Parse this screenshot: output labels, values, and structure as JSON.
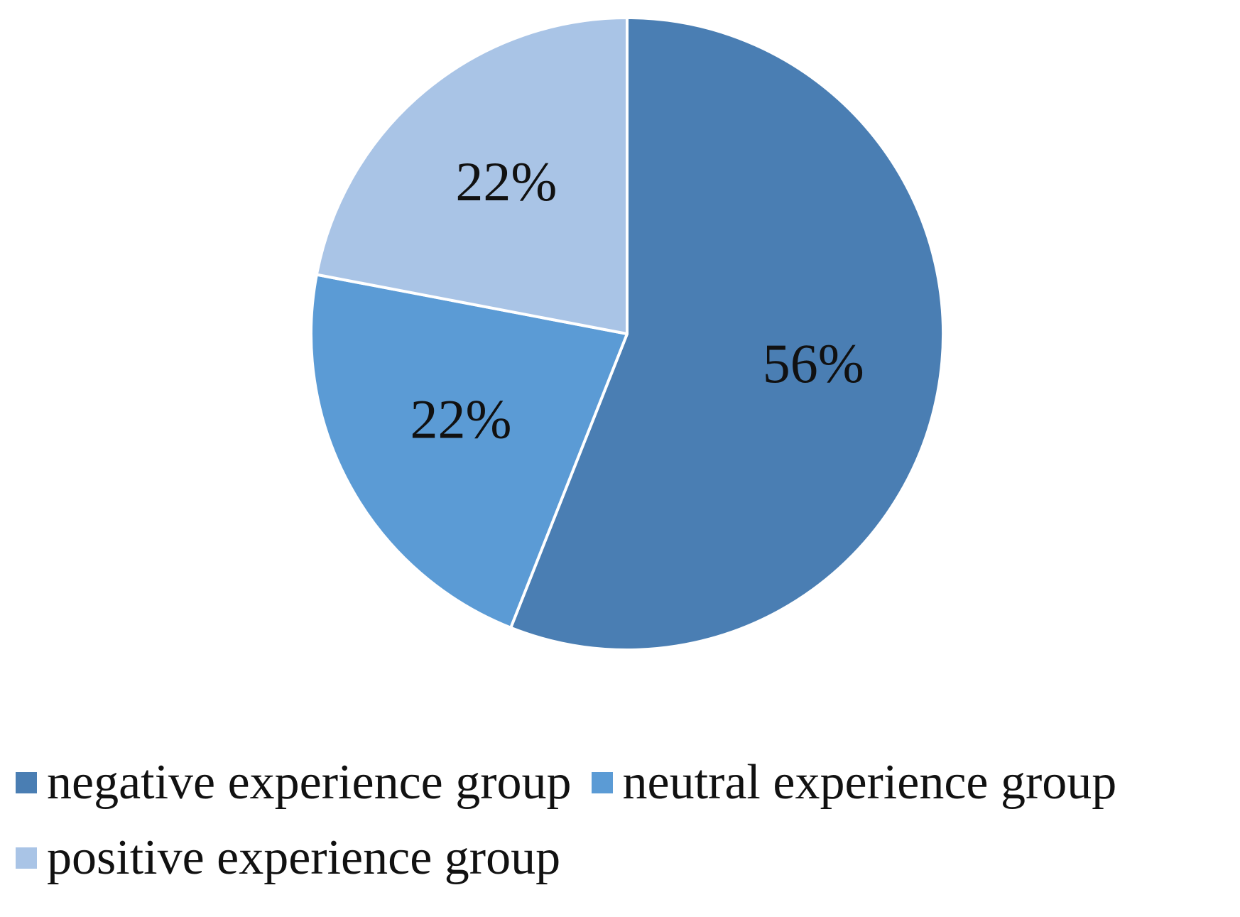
{
  "chart_data": {
    "type": "pie",
    "title": "",
    "slices": [
      {
        "name": "negative experience group",
        "value": 56,
        "label": "56%",
        "color": "#4a7eb3"
      },
      {
        "name": "neutral experience group",
        "value": 22,
        "label": "22%",
        "color": "#5b9bd5"
      },
      {
        "name": "positive experience group",
        "value": 22,
        "label": "22%",
        "color": "#a9c4e6"
      }
    ],
    "legend": "bottom",
    "start": "12 o'clock, clockwise"
  }
}
